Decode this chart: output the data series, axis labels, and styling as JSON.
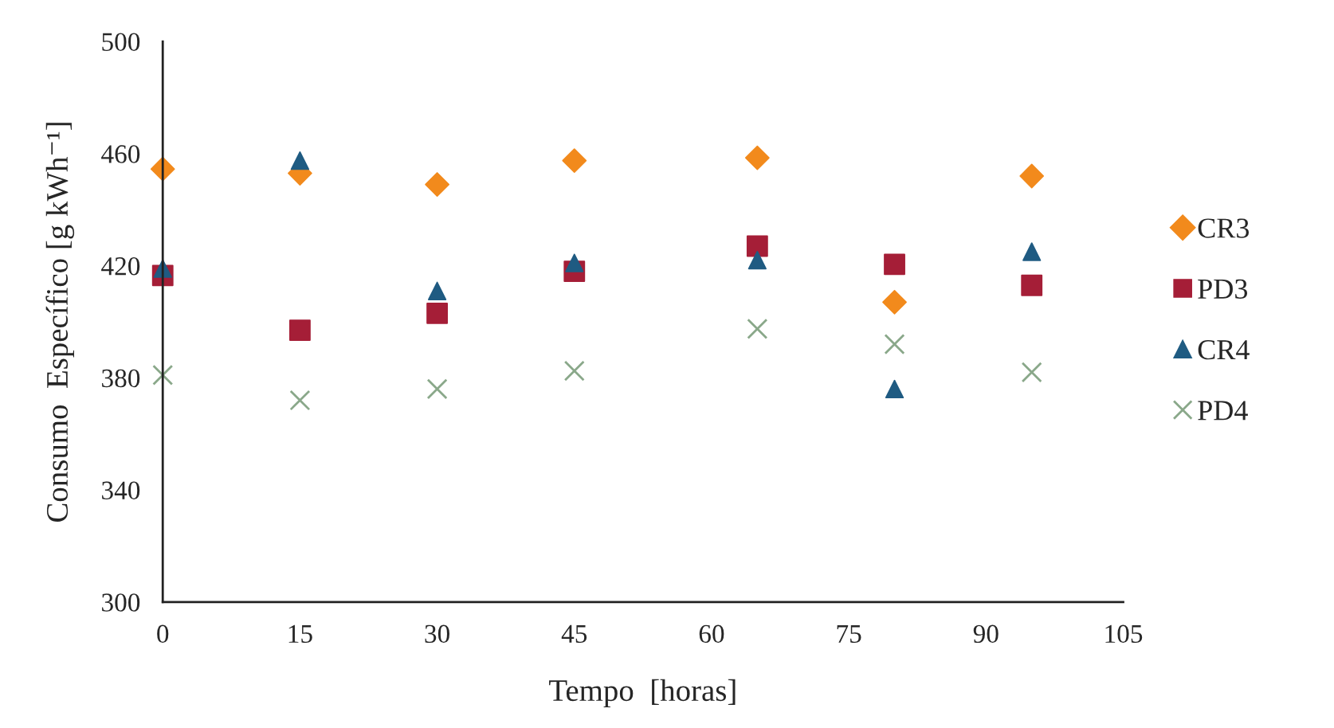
{
  "chart_data": {
    "type": "scatter",
    "xlabel": "Tempo  [horas]",
    "ylabel": "Consumo  Específico [g kWh⁻¹]",
    "x": [
      0,
      15,
      30,
      45,
      65,
      80,
      95
    ],
    "xlim": [
      0,
      105
    ],
    "xticks": [
      0,
      15,
      30,
      45,
      60,
      75,
      90,
      105
    ],
    "ylim": [
      300,
      500
    ],
    "yticks": [
      300,
      340,
      380,
      420,
      460,
      500
    ],
    "grid": false,
    "legend": "right",
    "series": [
      {
        "name": "CR3",
        "color": "#f28a1c",
        "marker": "diamond",
        "values": [
          454.5,
          453,
          449,
          457.5,
          458.5,
          407,
          452
        ]
      },
      {
        "name": "PD3",
        "color": "#a51e37",
        "marker": "square",
        "values": [
          416.5,
          397,
          403,
          418,
          427,
          420.5,
          413
        ]
      },
      {
        "name": "CR4",
        "color": "#1f5b82",
        "marker": "triangle",
        "values": [
          419,
          457.5,
          411,
          421,
          422,
          376,
          425
        ]
      },
      {
        "name": "PD4",
        "color": "#8aa88a",
        "marker": "cross",
        "values": [
          381,
          372,
          376,
          382.5,
          397.5,
          392,
          382
        ]
      }
    ]
  }
}
